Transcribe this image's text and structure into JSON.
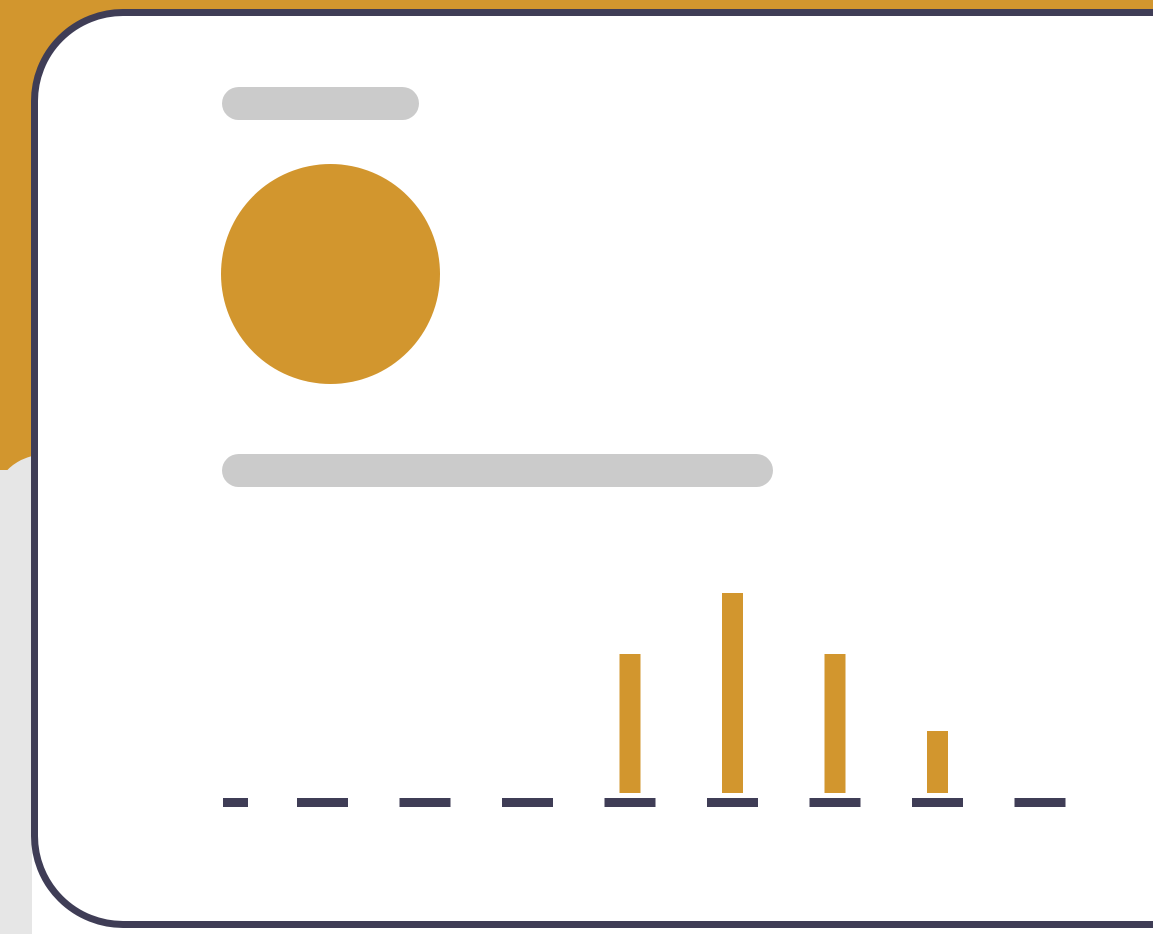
{
  "colors": {
    "accent": "#d2962e",
    "frame": "#3f3d56",
    "placeholder": "#cbcbcb",
    "background": "#ffffff",
    "backdrop": "#e6e6e6"
  },
  "icons": {
    "avatar": "avatar-circle-icon"
  },
  "chart_data": {
    "type": "bar",
    "title": "",
    "xlabel": "",
    "ylabel": "",
    "categories": [
      "",
      "",
      "",
      "",
      "",
      "",
      "",
      ""
    ],
    "values": [
      0,
      0,
      0,
      139,
      200,
      139,
      62,
      0
    ],
    "ylim": [
      0,
      200
    ],
    "grid": false
  }
}
